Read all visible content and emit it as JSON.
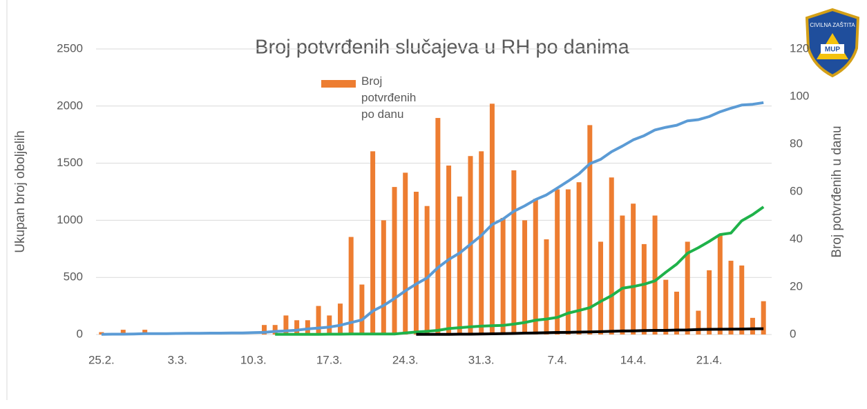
{
  "chart_data": {
    "type": "bar",
    "title": "Broj potvrđenih slučajeva u RH po danima",
    "y_label": "Ukupan broj oboljelih",
    "y2_label": "Broj potvrđenih u danu",
    "logo": {
      "top": "CIVILNA ZAŠTITA",
      "bottom": "MUP"
    },
    "categories": [
      "25.2.",
      null,
      null,
      null,
      null,
      null,
      null,
      "3.3.",
      null,
      null,
      null,
      null,
      null,
      null,
      "10.3.",
      null,
      null,
      null,
      null,
      null,
      null,
      "17.3.",
      null,
      null,
      null,
      null,
      null,
      null,
      "24.3.",
      null,
      null,
      null,
      null,
      null,
      null,
      "31.3.",
      null,
      null,
      null,
      null,
      null,
      null,
      "7.4.",
      null,
      null,
      null,
      null,
      null,
      null,
      "14.4.",
      null,
      null,
      null,
      null,
      null,
      null,
      "21.4.",
      null,
      null,
      null,
      null,
      null
    ],
    "ylim": [
      0,
      2500
    ],
    "yticks": [
      0,
      500,
      1000,
      1500,
      2000,
      2500
    ],
    "y2lim": [
      0,
      120
    ],
    "y2ticks": [
      0,
      20,
      40,
      60,
      80,
      100,
      120
    ],
    "grid": true,
    "series": [
      {
        "name": "Broj potvrđenih po danu",
        "type": "bar",
        "axis": "y2",
        "color": "#ed7d31",
        "values": [
          1,
          0,
          2,
          0,
          2,
          0,
          0,
          0,
          0,
          0,
          0,
          0,
          0,
          0,
          0,
          4,
          4,
          8,
          6,
          6,
          12,
          8,
          13,
          41,
          21,
          77,
          48,
          62,
          68,
          60,
          54,
          91,
          71,
          58,
          75,
          77,
          97,
          49,
          69,
          48,
          57,
          40,
          61,
          61,
          64,
          88,
          39,
          66,
          50,
          55,
          38,
          50,
          23,
          18,
          39,
          10,
          27,
          42,
          31,
          29,
          7,
          14
        ]
      },
      {
        "type": "line",
        "axis": "y",
        "color": "#5b9bd5",
        "values": [
          1,
          3,
          3,
          5,
          7,
          7,
          7,
          9,
          10,
          11,
          12,
          12,
          13,
          14,
          17,
          19,
          27,
          32,
          38,
          49,
          57,
          65,
          81,
          105,
          128,
          206,
          254,
          315,
          382,
          442,
          495,
          586,
          657,
          713,
          790,
          867,
          963,
          1011,
          1079,
          1126,
          1182,
          1222,
          1282,
          1343,
          1407,
          1495,
          1534,
          1600,
          1650,
          1704,
          1741,
          1791,
          1814,
          1832,
          1871,
          1881,
          1908,
          1950,
          1981,
          2009,
          2016,
          2030
        ]
      },
      {
        "type": "line",
        "axis": "y",
        "color": "#1fb24a",
        "values": [
          null,
          null,
          null,
          null,
          null,
          null,
          null,
          null,
          null,
          null,
          null,
          null,
          null,
          null,
          null,
          null,
          1,
          1,
          1,
          1,
          2,
          3,
          3,
          4,
          5,
          5,
          5,
          5,
          14,
          22,
          28,
          36,
          52,
          60,
          67,
          73,
          77,
          80,
          91,
          105,
          125,
          135,
          150,
          187,
          210,
          235,
          290,
          340,
          405,
          420,
          440,
          470,
          545,
          616,
          712,
          760,
          815,
          875,
          888,
          996,
          1050,
          1117
        ]
      },
      {
        "type": "line",
        "axis": "y",
        "color": "#000000",
        "values": [
          null,
          null,
          null,
          null,
          null,
          null,
          null,
          null,
          null,
          null,
          null,
          null,
          null,
          null,
          null,
          null,
          null,
          null,
          null,
          null,
          null,
          null,
          null,
          null,
          null,
          null,
          null,
          null,
          null,
          1,
          1,
          1,
          2,
          3,
          3,
          5,
          6,
          7,
          9,
          12,
          14,
          16,
          18,
          19,
          21,
          23,
          25,
          28,
          31,
          32,
          35,
          36,
          36,
          39,
          40,
          44,
          45,
          46,
          47,
          48,
          50,
          51
        ]
      }
    ]
  }
}
